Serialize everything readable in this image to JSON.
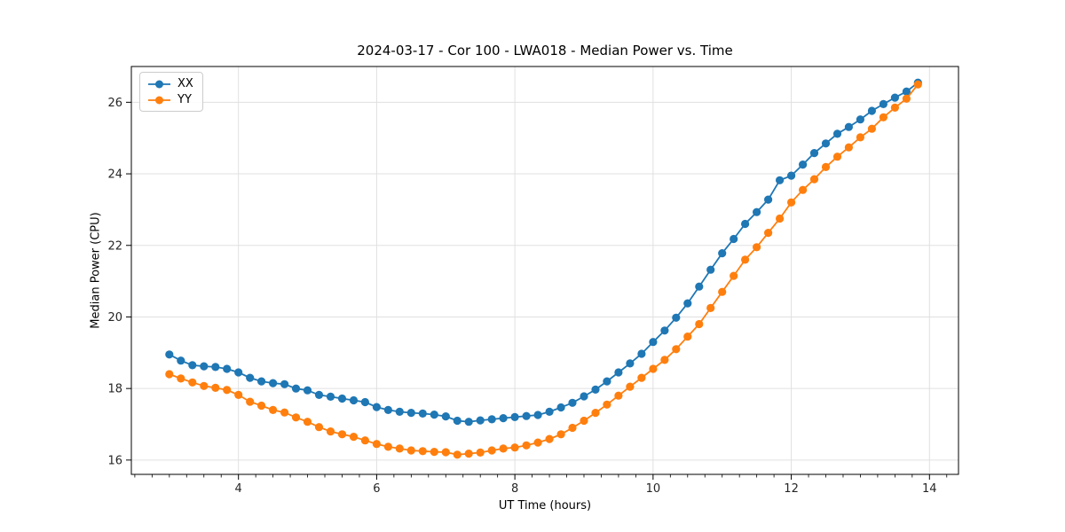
{
  "title": "2024-03-17 - Cor 100 - LWA018 - Median Power vs. Time",
  "chart_data": {
    "type": "line",
    "title": "2024-03-17 - Cor 100 - LWA018 - Median Power vs. Time",
    "xlabel": "UT Time (hours)",
    "ylabel": "Median Power (CPU)",
    "xlim": [
      2.45,
      14.42
    ],
    "ylim": [
      15.6,
      27.0
    ],
    "x_major_ticks": [
      4,
      6,
      8,
      10,
      12,
      14
    ],
    "x_minor_tick_step": 0.25,
    "y_major_ticks": [
      16,
      18,
      20,
      22,
      24,
      26
    ],
    "grid": true,
    "legend_position": "upper-left",
    "grid_color": "#e0e0e0",
    "spine_color": "#000000",
    "x": [
      3.0,
      3.167,
      3.333,
      3.5,
      3.667,
      3.833,
      4.0,
      4.167,
      4.333,
      4.5,
      4.667,
      4.833,
      5.0,
      5.167,
      5.333,
      5.5,
      5.667,
      5.833,
      6.0,
      6.167,
      6.333,
      6.5,
      6.667,
      6.833,
      7.0,
      7.167,
      7.333,
      7.5,
      7.667,
      7.833,
      8.0,
      8.167,
      8.333,
      8.5,
      8.667,
      8.833,
      9.0,
      9.167,
      9.333,
      9.5,
      9.667,
      9.833,
      10.0,
      10.167,
      10.333,
      10.5,
      10.667,
      10.833,
      11.0,
      11.167,
      11.333,
      11.5,
      11.667,
      11.833,
      12.0,
      12.167,
      12.333,
      12.5,
      12.667,
      12.833,
      13.0,
      13.167,
      13.333,
      13.5,
      13.667,
      13.833
    ],
    "series": [
      {
        "name": "XX",
        "color": "#1f77b4",
        "values": [
          18.95,
          18.78,
          18.65,
          18.62,
          18.6,
          18.55,
          18.45,
          18.3,
          18.2,
          18.15,
          18.12,
          18.0,
          17.95,
          17.82,
          17.77,
          17.72,
          17.67,
          17.62,
          17.48,
          17.4,
          17.35,
          17.32,
          17.3,
          17.27,
          17.22,
          17.1,
          17.07,
          17.11,
          17.14,
          17.17,
          17.2,
          17.23,
          17.26,
          17.35,
          17.47,
          17.6,
          17.78,
          17.97,
          18.2,
          18.45,
          18.7,
          18.97,
          19.3,
          19.62,
          19.98,
          20.38,
          20.85,
          21.32,
          21.78,
          22.18,
          22.6,
          22.93,
          23.28,
          23.82,
          23.95,
          24.26,
          24.58,
          24.85,
          25.12,
          25.31,
          25.52,
          25.76,
          25.95,
          26.13,
          26.3,
          26.55
        ]
      },
      {
        "name": "YY",
        "color": "#ff7f0e",
        "values": [
          18.4,
          18.28,
          18.17,
          18.07,
          18.02,
          17.96,
          17.82,
          17.63,
          17.52,
          17.4,
          17.33,
          17.19,
          17.07,
          16.92,
          16.8,
          16.72,
          16.65,
          16.55,
          16.45,
          16.37,
          16.32,
          16.27,
          16.25,
          16.23,
          16.22,
          16.15,
          16.18,
          16.21,
          16.27,
          16.32,
          16.35,
          16.41,
          16.49,
          16.59,
          16.72,
          16.9,
          17.1,
          17.32,
          17.55,
          17.8,
          18.05,
          18.3,
          18.55,
          18.8,
          19.1,
          19.45,
          19.8,
          20.25,
          20.7,
          21.15,
          21.6,
          21.95,
          22.35,
          22.75,
          23.2,
          23.55,
          23.85,
          24.19,
          24.48,
          24.74,
          25.02,
          25.26,
          25.58,
          25.85,
          26.1,
          26.5
        ]
      }
    ]
  }
}
